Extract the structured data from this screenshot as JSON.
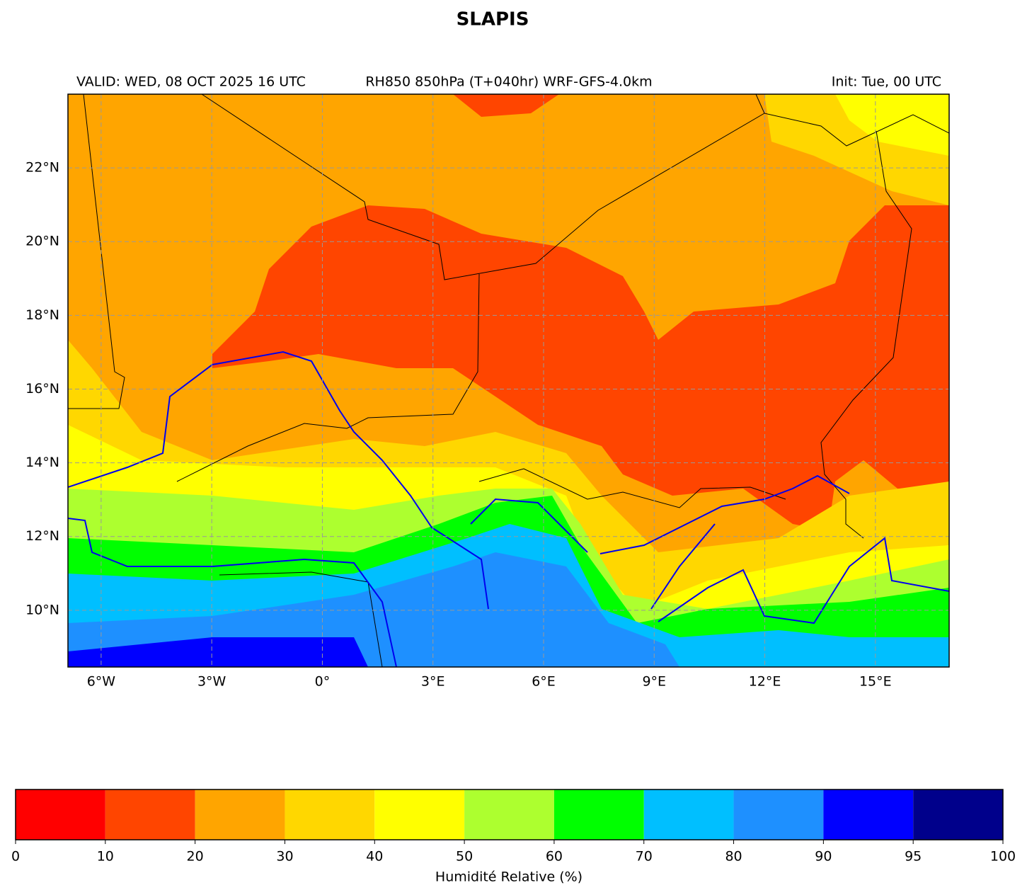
{
  "title": "SLAPIS",
  "subtitle_left": "VALID: WED, 08 OCT 2025 16 UTC",
  "subtitle_center": "RH850 850hPa (T+040hr) WRF-GFS-4.0km",
  "subtitle_right": "Init: Tue, 00 UTC",
  "map": {
    "xlim": [
      -6.9,
      17
    ],
    "ylim": [
      8.46,
      24
    ],
    "grid": true,
    "xticks": [
      {
        "value": -6,
        "label": "6°W"
      },
      {
        "value": -3,
        "label": "3°W"
      },
      {
        "value": 0,
        "label": "0°"
      },
      {
        "value": 3,
        "label": "3°E"
      },
      {
        "value": 6,
        "label": "6°E"
      },
      {
        "value": 9,
        "label": "9°E"
      },
      {
        "value": 12,
        "label": "12°E"
      },
      {
        "value": 15,
        "label": "15°E"
      }
    ],
    "yticks": [
      {
        "value": 10,
        "label": "10°N"
      },
      {
        "value": 12,
        "label": "12°N"
      },
      {
        "value": 14,
        "label": "14°N"
      },
      {
        "value": 16,
        "label": "16°N"
      },
      {
        "value": 18,
        "label": "18°N"
      },
      {
        "value": 20,
        "label": "20°N"
      },
      {
        "value": 22,
        "label": "22°N"
      }
    ]
  },
  "colorbar": {
    "label": "Humidité Relative (%)",
    "bounds": [
      0,
      10,
      20,
      30,
      40,
      50,
      60,
      70,
      80,
      90,
      95,
      100
    ],
    "colors": [
      "#ff0000",
      "#ff4500",
      "#ffa500",
      "#ffd700",
      "#ffff00",
      "#adff2f",
      "#00ff00",
      "#00bfff",
      "#1e90ff",
      "#0000ff",
      "#00008b"
    ]
  }
}
